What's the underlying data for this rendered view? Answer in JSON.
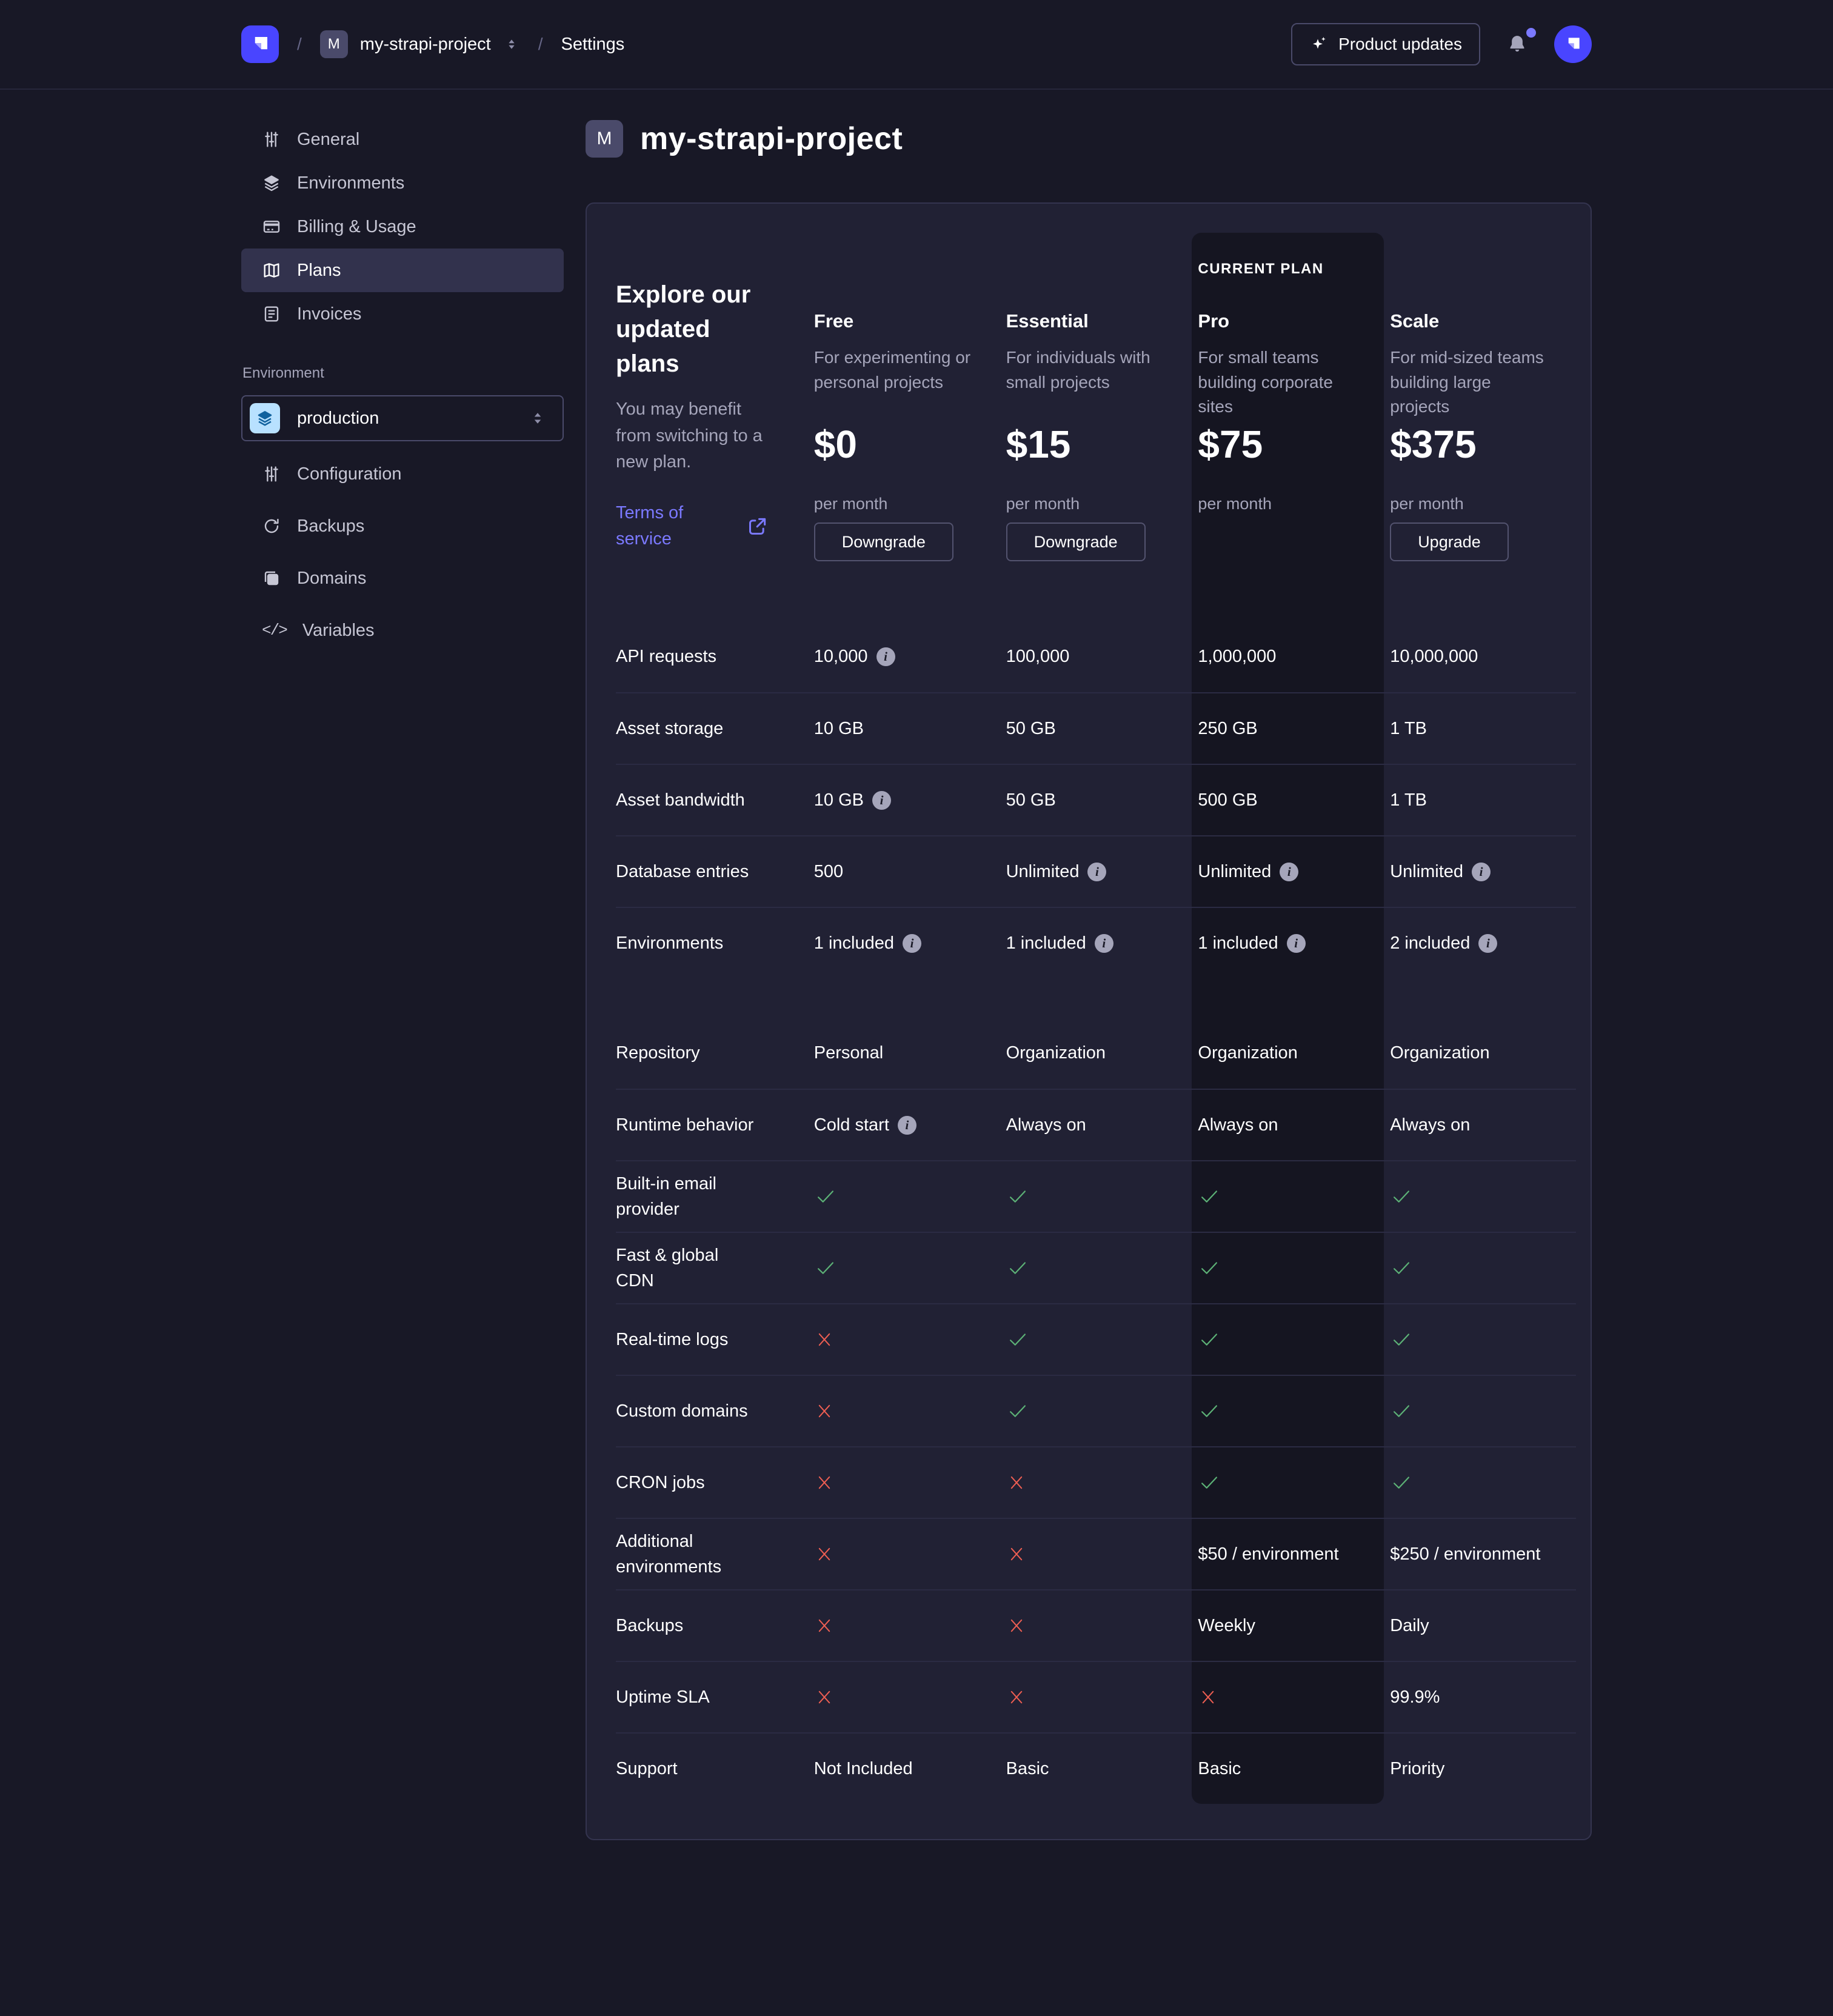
{
  "topbar": {
    "separator": "/",
    "project_badge": "M",
    "project_name": "my-strapi-project",
    "settings_label": "Settings",
    "product_updates_label": "Product updates"
  },
  "sidebar": {
    "items": [
      "General",
      "Environments",
      "Billing & Usage",
      "Plans",
      "Invoices"
    ],
    "selected_item": "Plans",
    "environment_label": "Environment",
    "environment_value": "production",
    "environment_items": [
      "Configuration",
      "Backups",
      "Domains",
      "Variables"
    ]
  },
  "main": {
    "project_badge": "M",
    "title": "my-strapi-project"
  },
  "plans_card": {
    "heading": "Explore our updated plans",
    "subheading": "You may benefit from switching to a new plan.",
    "terms_link": "Terms of service",
    "current_plan_label": "CURRENT PLAN",
    "plans": [
      {
        "name": "Free",
        "description": "For experimenting or personal projects",
        "price": "$0",
        "period": "per month",
        "action": "Downgrade",
        "current": false
      },
      {
        "name": "Essential",
        "description": "For individuals with small projects",
        "price": "$15",
        "period": "per month",
        "action": "Downgrade",
        "current": false
      },
      {
        "name": "Pro",
        "description": "For small teams building corporate sites",
        "price": "$75",
        "period": "per month",
        "action": null,
        "current": true
      },
      {
        "name": "Scale",
        "description": "For mid-sized teams building large projects",
        "price": "$375",
        "period": "per month",
        "action": "Upgrade",
        "current": false
      }
    ],
    "features": [
      {
        "label": "API requests",
        "divider": false,
        "values": [
          {
            "text": "10,000",
            "info": true
          },
          {
            "text": "100,000"
          },
          {
            "text": "1,000,000"
          },
          {
            "text": "10,000,000"
          }
        ]
      },
      {
        "label": "Asset storage",
        "divider": true,
        "values": [
          {
            "text": "10 GB"
          },
          {
            "text": "50 GB"
          },
          {
            "text": "250 GB"
          },
          {
            "text": "1 TB"
          }
        ]
      },
      {
        "label": "Asset bandwidth",
        "divider": true,
        "values": [
          {
            "text": "10 GB",
            "info": true
          },
          {
            "text": "50 GB"
          },
          {
            "text": "500 GB"
          },
          {
            "text": "1 TB"
          }
        ]
      },
      {
        "label": "Database entries",
        "divider": true,
        "values": [
          {
            "text": "500"
          },
          {
            "text": "Unlimited",
            "info": true
          },
          {
            "text": "Unlimited",
            "info": true
          },
          {
            "text": "Unlimited",
            "info": true
          }
        ]
      },
      {
        "label": "Environments",
        "divider": true,
        "values": [
          {
            "text": "1 included",
            "info": true
          },
          {
            "text": "1 included",
            "info": true
          },
          {
            "text": "1 included",
            "info": true
          },
          {
            "text": "2 included",
            "info": true
          }
        ]
      },
      {
        "spacer": true
      },
      {
        "label": "Repository",
        "divider": false,
        "values": [
          {
            "text": "Personal"
          },
          {
            "text": "Organization"
          },
          {
            "text": "Organization"
          },
          {
            "text": "Organization"
          }
        ]
      },
      {
        "label": "Runtime behavior",
        "divider": true,
        "values": [
          {
            "text": "Cold start",
            "info": true
          },
          {
            "text": "Always on"
          },
          {
            "text": "Always on"
          },
          {
            "text": "Always on"
          }
        ]
      },
      {
        "label": "Built-in email provider",
        "divider": true,
        "values": [
          {
            "type": "check"
          },
          {
            "type": "check"
          },
          {
            "type": "check"
          },
          {
            "type": "check"
          }
        ]
      },
      {
        "label": "Fast & global CDN",
        "divider": true,
        "values": [
          {
            "type": "check"
          },
          {
            "type": "check"
          },
          {
            "type": "check"
          },
          {
            "type": "check"
          }
        ]
      },
      {
        "label": "Real-time logs",
        "divider": true,
        "values": [
          {
            "type": "cross"
          },
          {
            "type": "check"
          },
          {
            "type": "check"
          },
          {
            "type": "check"
          }
        ]
      },
      {
        "label": "Custom domains",
        "divider": true,
        "values": [
          {
            "type": "cross"
          },
          {
            "type": "check"
          },
          {
            "type": "check"
          },
          {
            "type": "check"
          }
        ]
      },
      {
        "label": "CRON jobs",
        "divider": true,
        "values": [
          {
            "type": "cross"
          },
          {
            "type": "cross"
          },
          {
            "type": "check"
          },
          {
            "type": "check"
          }
        ]
      },
      {
        "label": "Additional environments",
        "divider": true,
        "values": [
          {
            "type": "cross"
          },
          {
            "type": "cross"
          },
          {
            "text": "$50 / environment"
          },
          {
            "text": "$250 / environment"
          }
        ]
      },
      {
        "label": "Backups",
        "divider": true,
        "values": [
          {
            "type": "cross"
          },
          {
            "type": "cross"
          },
          {
            "text": "Weekly"
          },
          {
            "text": "Daily"
          }
        ]
      },
      {
        "label": "Uptime SLA",
        "divider": true,
        "values": [
          {
            "type": "cross"
          },
          {
            "type": "cross"
          },
          {
            "type": "cross"
          },
          {
            "text": "99.9%"
          }
        ]
      },
      {
        "label": "Support",
        "divider": true,
        "values": [
          {
            "text": "Not Included"
          },
          {
            "text": "Basic"
          },
          {
            "text": "Basic"
          },
          {
            "text": "Priority"
          }
        ]
      }
    ]
  },
  "colors": {
    "page_bg": "#181826",
    "card_bg": "#212134",
    "highlight_bg": "#151521",
    "accent": "#4945ff",
    "link": "#7b79ff",
    "success": "#5cb176",
    "danger": "#ee5e52",
    "muted_text": "#a5a5ba"
  }
}
